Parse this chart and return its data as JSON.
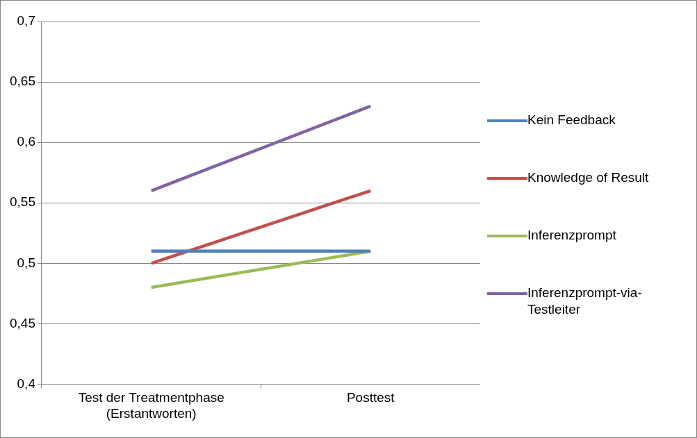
{
  "chart_data": {
    "type": "line",
    "categories": [
      "Test der Treatmentphase (Erstantworten)",
      "Posttest"
    ],
    "series": [
      {
        "name": "Kein Feedback",
        "color": "#4f81bd",
        "values": [
          0.51,
          0.51
        ]
      },
      {
        "name": "Knowledge of Result",
        "color": "#c0504d",
        "values": [
          0.5,
          0.56
        ]
      },
      {
        "name": "Inferenzprompt",
        "color": "#9bbb59",
        "values": [
          0.48,
          0.51
        ]
      },
      {
        "name": "Inferenzprompt-via-Testleiter",
        "color": "#8064a2",
        "values": [
          0.56,
          0.63
        ]
      }
    ],
    "ylim": [
      0.4,
      0.7
    ],
    "yticks": [
      {
        "value": 0.4,
        "label": "0,4"
      },
      {
        "value": 0.45,
        "label": "0,45"
      },
      {
        "value": 0.5,
        "label": "0,5"
      },
      {
        "value": 0.55,
        "label": "0,55"
      },
      {
        "value": 0.6,
        "label": "0,6"
      },
      {
        "value": 0.65,
        "label": "0,65"
      },
      {
        "value": 0.7,
        "label": "0,7"
      }
    ],
    "grid": "y",
    "legend": "right",
    "marker": "none",
    "line_style": "solid"
  }
}
